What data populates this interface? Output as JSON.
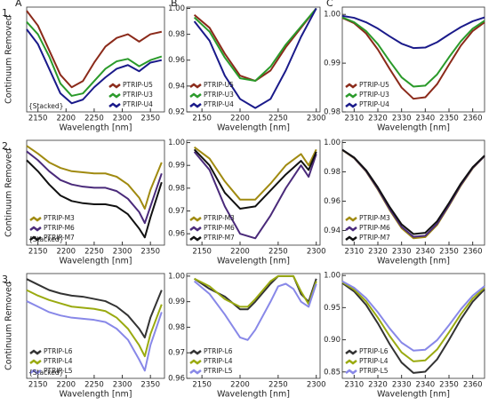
{
  "chart_data": [
    {
      "type": "line",
      "panel_label": "A",
      "row_label": "1.",
      "ylabel": "Continuum Removed",
      "xlabel": "Wavelength [nm]",
      "annotation": "{Stacked}",
      "legend": "lower right",
      "x": [
        2130,
        2150,
        2170,
        2190,
        2210,
        2230,
        2250,
        2270,
        2290,
        2310,
        2330,
        2350,
        2370
      ],
      "xlim": [
        2130,
        2375
      ],
      "xticks": [
        2150,
        2200,
        2250,
        2300,
        2350
      ],
      "ylim": [
        0.15,
        1.0
      ],
      "yticks": [],
      "series": [
        {
          "name": "PTRIP-U5",
          "color": "#8b2a1a",
          "values": [
            0.97,
            0.85,
            0.65,
            0.45,
            0.35,
            0.4,
            0.55,
            0.68,
            0.75,
            0.78,
            0.72,
            0.78,
            0.8
          ]
        },
        {
          "name": "PTRIP-U3",
          "color": "#2a9a2a",
          "values": [
            0.88,
            0.78,
            0.6,
            0.38,
            0.28,
            0.3,
            0.4,
            0.5,
            0.56,
            0.58,
            0.52,
            0.57,
            0.6
          ]
        },
        {
          "name": "PTRIP-U4",
          "color": "#1a1a8a",
          "values": [
            0.82,
            0.7,
            0.5,
            0.3,
            0.22,
            0.25,
            0.35,
            0.43,
            0.5,
            0.53,
            0.48,
            0.55,
            0.57
          ]
        }
      ]
    },
    {
      "type": "line",
      "panel_label": "B",
      "xlabel": "Wavelength [nm]",
      "legend": "lower left",
      "x": [
        2140,
        2160,
        2180,
        2200,
        2220,
        2240,
        2260,
        2280,
        2300
      ],
      "xlim": [
        2130,
        2305
      ],
      "xticks": [
        2150,
        2200,
        2250,
        2300
      ],
      "ylim": [
        0.92,
        1.001
      ],
      "yticks": [
        0.92,
        0.94,
        0.96,
        0.98,
        {
          "value": 1,
          "label": "1.00"
        }
      ],
      "series": [
        {
          "name": "PTRIP-U5",
          "color": "#8b2a1a",
          "values": [
            0.995,
            0.985,
            0.965,
            0.948,
            0.944,
            0.952,
            0.97,
            0.985,
            1.0
          ]
        },
        {
          "name": "PTRIP-U3",
          "color": "#2a9a2a",
          "values": [
            0.993,
            0.982,
            0.962,
            0.946,
            0.944,
            0.955,
            0.972,
            0.986,
            1.0
          ]
        },
        {
          "name": "PTRIP-U4",
          "color": "#1a1a8a",
          "values": [
            0.99,
            0.975,
            0.948,
            0.93,
            0.923,
            0.93,
            0.952,
            0.978,
            1.0
          ]
        }
      ]
    },
    {
      "type": "line",
      "panel_label": "C",
      "xlabel": "Wavelength [nm]",
      "legend": "lower left",
      "x": [
        2305,
        2310,
        2315,
        2320,
        2325,
        2330,
        2335,
        2340,
        2345,
        2350,
        2355,
        2360,
        2365
      ],
      "xlim": [
        2305,
        2365
      ],
      "xticks": [
        2310,
        2320,
        2330,
        2340,
        2350,
        2360
      ],
      "ylim": [
        0.98,
        1.0015
      ],
      "yticks": [
        0.98,
        0.99,
        {
          "value": 1,
          "label": "1.00"
        }
      ],
      "series": [
        {
          "name": "PTRIP-U5",
          "color": "#8b2a1a",
          "values": [
            0.9993,
            0.9982,
            0.9961,
            0.9928,
            0.9888,
            0.985,
            0.9827,
            0.983,
            0.9857,
            0.9897,
            0.9936,
            0.9966,
            0.9984
          ]
        },
        {
          "name": "PTRIP-U3",
          "color": "#2a9a2a",
          "values": [
            0.9994,
            0.9984,
            0.9966,
            0.9939,
            0.9904,
            0.9871,
            0.9852,
            0.9854,
            0.9877,
            0.9912,
            0.9945,
            0.9971,
            0.9987
          ]
        },
        {
          "name": "PTRIP-U4",
          "color": "#1a1a8a",
          "values": [
            0.9997,
            0.9993,
            0.9984,
            0.9971,
            0.9955,
            0.994,
            0.9931,
            0.9932,
            0.9943,
            0.9959,
            0.9974,
            0.9986,
            0.9994
          ]
        }
      ]
    },
    {
      "type": "line",
      "row_label": "2.",
      "ylabel": "Continuum Removed",
      "xlabel": "Wavelength [nm]",
      "annotation": "{Stacked}",
      "legend": "lower left",
      "x": [
        2130,
        2150,
        2170,
        2190,
        2210,
        2230,
        2250,
        2270,
        2290,
        2310,
        2330,
        2340,
        2350,
        2370
      ],
      "xlim": [
        2130,
        2375
      ],
      "xticks": [
        2150,
        2200,
        2250,
        2300,
        2350
      ],
      "ylim": [
        0.05,
        1.0
      ],
      "yticks": [],
      "series": [
        {
          "name": "PTRIP-M3",
          "color": "#a08a10",
          "values": [
            0.95,
            0.88,
            0.8,
            0.75,
            0.72,
            0.71,
            0.7,
            0.7,
            0.67,
            0.6,
            0.48,
            0.38,
            0.55,
            0.8
          ]
        },
        {
          "name": "PTRIP-M6",
          "color": "#4a2a7a",
          "values": [
            0.9,
            0.82,
            0.72,
            0.64,
            0.6,
            0.58,
            0.57,
            0.57,
            0.54,
            0.47,
            0.35,
            0.25,
            0.4,
            0.7
          ]
        },
        {
          "name": "PTRIP-M7",
          "color": "#111111",
          "values": [
            0.82,
            0.72,
            0.6,
            0.5,
            0.45,
            0.43,
            0.42,
            0.42,
            0.4,
            0.33,
            0.2,
            0.12,
            0.3,
            0.62
          ]
        }
      ]
    },
    {
      "type": "line",
      "xlabel": "Wavelength [nm]",
      "legend": "lower left",
      "x": [
        2140,
        2160,
        2180,
        2200,
        2220,
        2240,
        2260,
        2280,
        2290,
        2300
      ],
      "xlim": [
        2130,
        2305
      ],
      "xticks": [
        2150,
        2200,
        2250,
        2300
      ],
      "ylim": [
        0.955,
        1.001
      ],
      "yticks": [
        0.96,
        0.97,
        0.98,
        0.99,
        {
          "value": 1,
          "label": "1.00"
        }
      ],
      "series": [
        {
          "name": "PTRIP-M3",
          "color": "#a08a10",
          "values": [
            0.998,
            0.993,
            0.983,
            0.975,
            0.975,
            0.982,
            0.99,
            0.995,
            0.99,
            0.997
          ]
        },
        {
          "name": "PTRIP-M6",
          "color": "#4a2a7a",
          "values": [
            0.996,
            0.988,
            0.972,
            0.96,
            0.958,
            0.968,
            0.98,
            0.99,
            0.985,
            0.995
          ]
        },
        {
          "name": "PTRIP-M7",
          "color": "#111111",
          "values": [
            0.997,
            0.99,
            0.978,
            0.971,
            0.972,
            0.979,
            0.986,
            0.992,
            0.988,
            0.996
          ]
        }
      ]
    },
    {
      "type": "line",
      "xlabel": "Wavelength [nm]",
      "legend": "lower left",
      "x": [
        2305,
        2310,
        2315,
        2320,
        2325,
        2330,
        2335,
        2340,
        2345,
        2350,
        2355,
        2360,
        2365
      ],
      "xlim": [
        2305,
        2365
      ],
      "xticks": [
        2310,
        2320,
        2330,
        2340,
        2350,
        2360
      ],
      "ylim": [
        0.93,
        1.0015
      ],
      "yticks": [
        0.94,
        0.96,
        0.98,
        {
          "value": 1,
          "label": "1.00"
        }
      ],
      "series": [
        {
          "name": "PTRIP-M3",
          "color": "#a08a10",
          "values": [
            0.9949,
            0.9893,
            0.9803,
            0.9679,
            0.9539,
            0.9416,
            0.9347,
            0.9355,
            0.9438,
            0.9568,
            0.9706,
            0.9824,
            0.9907
          ]
        },
        {
          "name": "PTRIP-M6",
          "color": "#4a2a7a",
          "values": [
            0.995,
            0.9895,
            0.9806,
            0.9684,
            0.9546,
            0.9425,
            0.9357,
            0.9364,
            0.9446,
            0.9574,
            0.9711,
            0.9827,
            0.9908
          ]
        },
        {
          "name": "PTRIP-M7",
          "color": "#111111",
          "values": [
            0.9951,
            0.9898,
            0.9812,
            0.9694,
            0.956,
            0.9442,
            0.9376,
            0.9384,
            0.9463,
            0.9587,
            0.972,
            0.9832,
            0.9911
          ]
        }
      ]
    },
    {
      "type": "line",
      "row_label": "3.",
      "ylabel": "Continuum Removed",
      "xlabel": "Wavelength [nm]",
      "annotation": "{Stacked}",
      "legend": "lower left",
      "x": [
        2130,
        2150,
        2170,
        2190,
        2210,
        2230,
        2250,
        2270,
        2290,
        2310,
        2330,
        2340,
        2350,
        2370
      ],
      "xlim": [
        2130,
        2375
      ],
      "xticks": [
        2150,
        2200,
        2250,
        2300,
        2350
      ],
      "ylim": [
        0.05,
        1.0
      ],
      "yticks": [],
      "series": [
        {
          "name": "PTRIP-L6",
          "color": "#333333",
          "values": [
            0.95,
            0.9,
            0.85,
            0.82,
            0.8,
            0.79,
            0.77,
            0.75,
            0.7,
            0.62,
            0.5,
            0.42,
            0.6,
            0.85
          ]
        },
        {
          "name": "PTRIP-L4",
          "color": "#9aaa10",
          "values": [
            0.85,
            0.8,
            0.76,
            0.73,
            0.7,
            0.69,
            0.68,
            0.66,
            0.6,
            0.5,
            0.35,
            0.25,
            0.45,
            0.72
          ]
        },
        {
          "name": "PTRIP-L5",
          "color": "#8888e8",
          "values": [
            0.75,
            0.7,
            0.65,
            0.62,
            0.6,
            0.59,
            0.58,
            0.56,
            0.5,
            0.4,
            0.22,
            0.12,
            0.35,
            0.65
          ]
        }
      ]
    },
    {
      "type": "line",
      "xlabel": "Wavelength [nm]",
      "legend": "lower left",
      "x": [
        2140,
        2160,
        2180,
        2200,
        2210,
        2220,
        2240,
        2250,
        2260,
        2270,
        2280,
        2290,
        2300
      ],
      "xlim": [
        2130,
        2305
      ],
      "xticks": [
        2150,
        2200,
        2250,
        2300
      ],
      "ylim": [
        0.96,
        1.001
      ],
      "yticks": [
        0.96,
        0.97,
        0.98,
        0.99,
        {
          "value": 1,
          "label": "1.00"
        }
      ],
      "series": [
        {
          "name": "PTRIP-L6",
          "color": "#333333",
          "values": [
            0.999,
            0.995,
            0.992,
            0.987,
            0.987,
            0.99,
            0.997,
            1.0,
            1.0,
            1.0,
            0.993,
            0.99,
            0.999
          ]
        },
        {
          "name": "PTRIP-L4",
          "color": "#9aaa10",
          "values": [
            0.999,
            0.996,
            0.991,
            0.988,
            0.988,
            0.991,
            0.998,
            1.0,
            1.0,
            1.0,
            0.994,
            0.989,
            0.998
          ]
        },
        {
          "name": "PTRIP-L5",
          "color": "#8888e8",
          "values": [
            0.998,
            0.993,
            0.985,
            0.976,
            0.975,
            0.979,
            0.99,
            0.996,
            0.997,
            0.995,
            0.99,
            0.988,
            0.997
          ]
        }
      ]
    },
    {
      "type": "line",
      "xlabel": "Wavelength [nm]",
      "legend": "lower left",
      "x": [
        2305,
        2310,
        2315,
        2320,
        2325,
        2330,
        2335,
        2340,
        2345,
        2350,
        2355,
        2360,
        2365
      ],
      "xlim": [
        2305,
        2365
      ],
      "xticks": [
        2310,
        2320,
        2330,
        2340,
        2350,
        2360
      ],
      "ylim": [
        0.84,
        1.003
      ],
      "yticks": [
        0.85,
        {
          "value": 0.9,
          "label": "0.90"
        },
        0.95,
        {
          "value": 1,
          "label": "1.00"
        }
      ],
      "series": [
        {
          "name": "PTRIP-L6",
          "color": "#333333",
          "values": [
            0.9882,
            0.9752,
            0.9544,
            0.9256,
            0.8932,
            0.8646,
            0.8485,
            0.8504,
            0.8696,
            0.8998,
            0.9319,
            0.9593,
            0.9784
          ]
        },
        {
          "name": "PTRIP-L4",
          "color": "#9aaa10",
          "values": [
            0.9896,
            0.9781,
            0.9598,
            0.9344,
            0.9058,
            0.8805,
            0.8664,
            0.868,
            0.885,
            0.9116,
            0.9399,
            0.9641,
            0.981
          ]
        },
        {
          "name": "PTRIP-L5",
          "color": "#8888e8",
          "values": [
            0.9909,
            0.9809,
            0.9648,
            0.9427,
            0.9176,
            0.8956,
            0.8832,
            0.8846,
            0.8995,
            0.9227,
            0.9475,
            0.9686,
            0.9834
          ]
        }
      ]
    }
  ]
}
